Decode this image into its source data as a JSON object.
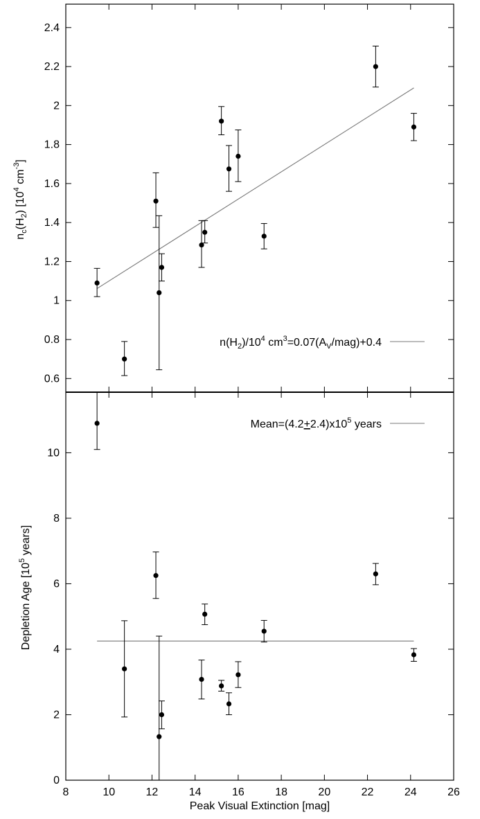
{
  "chart_data": [
    {
      "type": "scatter",
      "panel": "top",
      "title": "",
      "ylabel_parts": {
        "base": "n",
        "sub1": "c",
        "mid": "(H",
        "sub2": "2",
        "tail": ") [10",
        "sup1": "4",
        "tail2": " cm",
        "sup2": "-3",
        "end": "]"
      },
      "xlim": [
        8,
        26
      ],
      "ylim": [
        0.53,
        2.52
      ],
      "yticks": [
        0.6,
        0.8,
        1,
        1.2,
        1.4,
        1.6,
        1.8,
        2,
        2.2,
        2.4
      ],
      "ytick_labels": [
        "0.6",
        "0.8",
        "1",
        "1.2",
        "1.4",
        "1.6",
        "1.8",
        "2",
        "2.2",
        "2.4"
      ],
      "grid": false,
      "legend_position": "bottom-right",
      "legend_parts": {
        "a": "n(H",
        "b": "2",
        "c": ")/10",
        "d": "4",
        "e": " cm",
        "f": "3",
        "g": "=0.07(A",
        "h": "V",
        "i": "/mag)+0.4"
      },
      "points": [
        {
          "x": 9.45,
          "y": 1.09,
          "ylow": 1.02,
          "yhigh": 1.165
        },
        {
          "x": 10.72,
          "y": 0.7,
          "ylow": 0.615,
          "yhigh": 0.79
        },
        {
          "x": 12.18,
          "y": 1.51,
          "ylow": 1.375,
          "yhigh": 1.655
        },
        {
          "x": 12.33,
          "y": 1.04,
          "ylow": 0.645,
          "yhigh": 1.435
        },
        {
          "x": 12.45,
          "y": 1.17,
          "ylow": 1.1,
          "yhigh": 1.24
        },
        {
          "x": 14.3,
          "y": 1.285,
          "ylow": 1.17,
          "yhigh": 1.41
        },
        {
          "x": 14.45,
          "y": 1.35,
          "ylow": 1.295,
          "yhigh": 1.41
        },
        {
          "x": 15.22,
          "y": 1.92,
          "ylow": 1.85,
          "yhigh": 1.995
        },
        {
          "x": 15.57,
          "y": 1.675,
          "ylow": 1.56,
          "yhigh": 1.795
        },
        {
          "x": 16.0,
          "y": 1.74,
          "ylow": 1.61,
          "yhigh": 1.875
        },
        {
          "x": 17.2,
          "y": 1.33,
          "ylow": 1.265,
          "yhigh": 1.395
        },
        {
          "x": 22.38,
          "y": 2.2,
          "ylow": 2.095,
          "yhigh": 2.305
        },
        {
          "x": 24.15,
          "y": 1.89,
          "ylow": 1.82,
          "yhigh": 1.96
        }
      ],
      "fit_line": {
        "slope": 0.07,
        "intercept": 0.4,
        "x_start": 9.45,
        "x_end": 24.15
      }
    },
    {
      "type": "scatter",
      "panel": "bottom",
      "title": "",
      "xlabel": "Peak Visual Extinction [mag]",
      "ylabel_parts": {
        "a": "Depletion Age [10",
        "b": "5",
        "c": " years]"
      },
      "xlim": [
        8,
        26
      ],
      "ylim": [
        0,
        11.85
      ],
      "xticks": [
        8,
        10,
        12,
        14,
        16,
        18,
        20,
        22,
        24,
        26
      ],
      "xtick_labels": [
        "8",
        "10",
        "12",
        "14",
        "16",
        "18",
        "20",
        "22",
        "24",
        "26"
      ],
      "yticks": [
        0,
        2,
        4,
        6,
        8,
        10
      ],
      "ytick_labels": [
        "0",
        "2",
        "4",
        "6",
        "8",
        "10"
      ],
      "grid": false,
      "legend_position": "top-right",
      "legend_parts": {
        "a": "Mean=(4.2",
        "b": "+",
        "c": "2.4)x10",
        "d": "5",
        "e": " years"
      },
      "points": [
        {
          "x": 9.45,
          "y": 10.9,
          "ylow": 10.1,
          "yhigh": 11.85
        },
        {
          "x": 10.72,
          "y": 3.4,
          "ylow": 1.93,
          "yhigh": 4.87
        },
        {
          "x": 12.18,
          "y": 6.25,
          "ylow": 5.55,
          "yhigh": 6.97
        },
        {
          "x": 12.33,
          "y": 1.33,
          "ylow": 0.0,
          "yhigh": 4.4
        },
        {
          "x": 12.45,
          "y": 2.0,
          "ylow": 1.57,
          "yhigh": 2.42
        },
        {
          "x": 14.3,
          "y": 3.08,
          "ylow": 2.48,
          "yhigh": 3.67
        },
        {
          "x": 14.45,
          "y": 5.07,
          "ylow": 4.75,
          "yhigh": 5.38
        },
        {
          "x": 15.22,
          "y": 2.88,
          "ylow": 2.72,
          "yhigh": 3.05
        },
        {
          "x": 15.57,
          "y": 2.33,
          "ylow": 2.0,
          "yhigh": 2.67
        },
        {
          "x": 16.0,
          "y": 3.22,
          "ylow": 2.83,
          "yhigh": 3.62
        },
        {
          "x": 17.2,
          "y": 4.55,
          "ylow": 4.22,
          "yhigh": 4.88
        },
        {
          "x": 22.38,
          "y": 6.3,
          "ylow": 5.97,
          "yhigh": 6.62
        },
        {
          "x": 24.15,
          "y": 3.83,
          "ylow": 3.63,
          "yhigh": 4.02
        }
      ],
      "mean_line": {
        "y": 4.25,
        "x_start": 9.45,
        "x_end": 24.15
      }
    }
  ]
}
